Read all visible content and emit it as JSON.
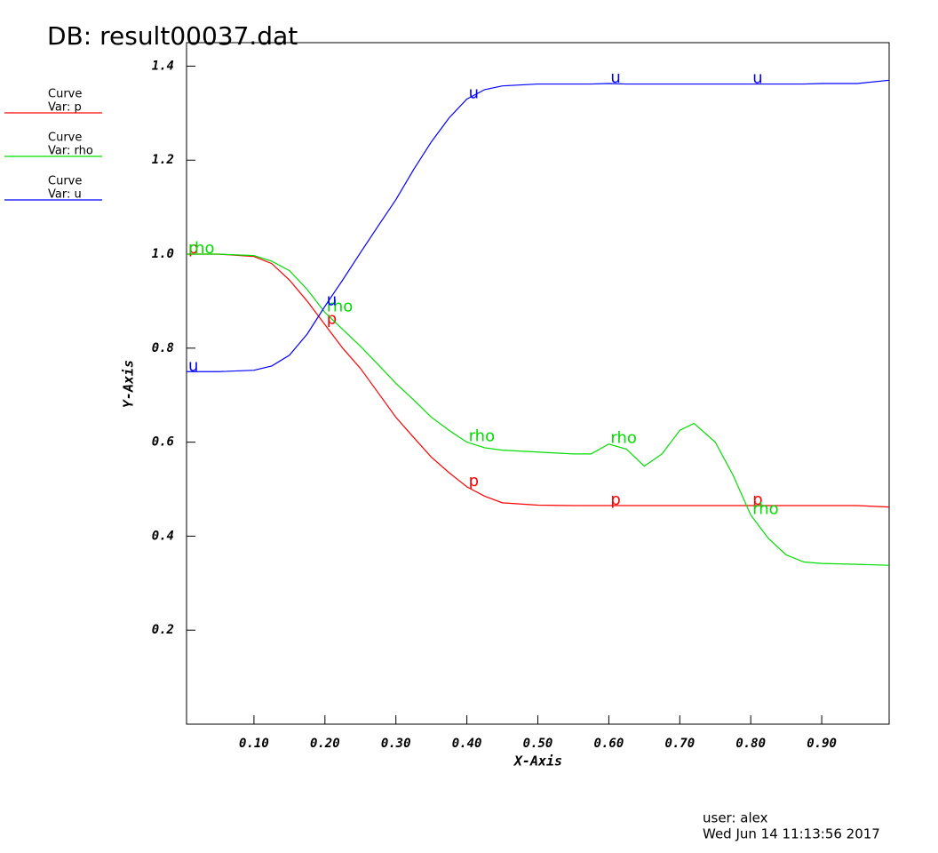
{
  "chart_data": {
    "type": "line",
    "title": "DB: result00037.dat",
    "xlabel": "X-Axis",
    "ylabel": "Y-Axis",
    "user": "user: alex",
    "date": "Wed Jun 14 11:13:56 2017",
    "legend": [
      {
        "heading": "Curve",
        "text": "Var: p"
      },
      {
        "heading": "Curve",
        "text": "Var: rho"
      },
      {
        "heading": "Curve",
        "text": "Var: u"
      }
    ],
    "x": [
      0.005,
      0.05,
      0.1,
      0.125,
      0.15,
      0.175,
      0.2,
      0.225,
      0.25,
      0.275,
      0.3,
      0.325,
      0.35,
      0.375,
      0.4,
      0.425,
      0.45,
      0.5,
      0.55,
      0.575,
      0.6,
      0.625,
      0.65,
      0.675,
      0.7,
      0.72,
      0.75,
      0.775,
      0.8,
      0.825,
      0.85,
      0.875,
      0.9,
      0.95,
      0.995
    ],
    "series": [
      {
        "name": "p",
        "color": "#ff0000",
        "values": [
          1.0,
          1.0,
          0.995,
          0.98,
          0.945,
          0.9,
          0.85,
          0.8,
          0.757,
          0.705,
          0.653,
          0.61,
          0.568,
          0.535,
          0.505,
          0.485,
          0.471,
          0.466,
          0.465,
          0.465,
          0.465,
          0.465,
          0.465,
          0.465,
          0.465,
          0.465,
          0.465,
          0.465,
          0.465,
          0.465,
          0.465,
          0.465,
          0.465,
          0.465,
          0.462
        ]
      },
      {
        "name": "rho",
        "color": "#00dd00",
        "values": [
          1.0,
          1.0,
          0.997,
          0.985,
          0.965,
          0.925,
          0.876,
          0.84,
          0.804,
          0.765,
          0.725,
          0.69,
          0.653,
          0.625,
          0.6,
          0.588,
          0.583,
          0.579,
          0.575,
          0.575,
          0.596,
          0.585,
          0.549,
          0.575,
          0.625,
          0.64,
          0.6,
          0.53,
          0.445,
          0.395,
          0.36,
          0.345,
          0.342,
          0.34,
          0.338
        ]
      },
      {
        "name": "u",
        "color": "#0000ff",
        "values": [
          0.75,
          0.75,
          0.753,
          0.762,
          0.785,
          0.83,
          0.889,
          0.945,
          1.003,
          1.06,
          1.116,
          1.18,
          1.239,
          1.29,
          1.33,
          1.35,
          1.358,
          1.362,
          1.362,
          1.362,
          1.363,
          1.362,
          1.362,
          1.362,
          1.362,
          1.362,
          1.362,
          1.362,
          1.362,
          1.362,
          1.362,
          1.362,
          1.363,
          1.363,
          1.37
        ]
      }
    ],
    "xlim": [
      0.005,
      0.995
    ],
    "ylim": [
      0,
      1.45
    ],
    "xticks": [
      {
        "value": 0.1,
        "label": "0.10"
      },
      {
        "value": 0.2,
        "label": "0.20"
      },
      {
        "value": 0.3,
        "label": "0.30"
      },
      {
        "value": 0.4,
        "label": "0.40"
      },
      {
        "value": 0.5,
        "label": "0.50"
      },
      {
        "value": 0.6,
        "label": "0.60"
      },
      {
        "value": 0.7,
        "label": "0.70"
      },
      {
        "value": 0.8,
        "label": "0.80"
      },
      {
        "value": 0.9,
        "label": "0.90"
      }
    ],
    "yticks": [
      0.2,
      0.4,
      0.6,
      0.8,
      {
        "value": 1.0,
        "label": "1.0"
      },
      1.2,
      1.4
    ]
  }
}
